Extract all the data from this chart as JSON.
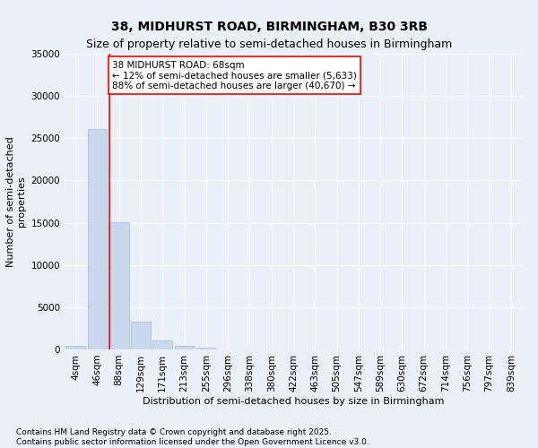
{
  "title": "38, MIDHURST ROAD, BIRMINGHAM, B30 3RB",
  "subtitle": "Size of property relative to semi-detached houses in Birmingham",
  "xlabel": "Distribution of semi-detached houses by size in Birmingham",
  "ylabel": "Number of semi-detached\nproperties",
  "bin_labels": [
    "4sqm",
    "46sqm",
    "88sqm",
    "129sqm",
    "171sqm",
    "213sqm",
    "255sqm",
    "296sqm",
    "338sqm",
    "380sqm",
    "422sqm",
    "463sqm",
    "505sqm",
    "547sqm",
    "589sqm",
    "630sqm",
    "672sqm",
    "714sqm",
    "756sqm",
    "797sqm",
    "839sqm"
  ],
  "bar_values": [
    380,
    26100,
    15100,
    3300,
    1050,
    430,
    170,
    0,
    0,
    0,
    0,
    0,
    0,
    0,
    0,
    0,
    0,
    0,
    0,
    0,
    0
  ],
  "bar_color": "#c8d9ed",
  "bar_edgecolor": "#a0b8d8",
  "property_line_x": 1.55,
  "property_sqm": 68,
  "pct_smaller": 12,
  "count_smaller": "5,633",
  "pct_larger": 88,
  "count_larger": "40,670",
  "annotation_line1": "38 MIDHURST ROAD: 68sqm",
  "annotation_line2": "← 12% of semi-detached houses are smaller (5,633)",
  "annotation_line3": "88% of semi-detached houses are larger (40,670) →",
  "ylim": [
    0,
    35000
  ],
  "yticks": [
    0,
    5000,
    10000,
    15000,
    20000,
    25000,
    30000,
    35000
  ],
  "footer_text": "Contains HM Land Registry data © Crown copyright and database right 2025.\nContains public sector information licensed under the Open Government Licence v3.0.",
  "background_color": "#eaf0f8",
  "plot_background_color": "#eaf0f8",
  "grid_color": "#ffffff",
  "title_fontsize": 10,
  "subtitle_fontsize": 9,
  "axis_label_fontsize": 8,
  "tick_fontsize": 7.5,
  "annotation_fontsize": 7.5,
  "footer_fontsize": 6.5
}
